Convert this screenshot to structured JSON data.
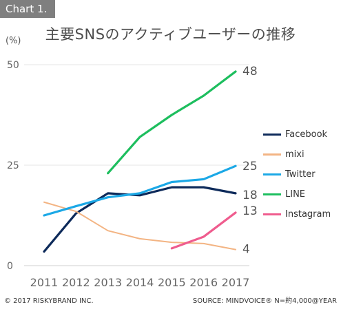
{
  "header": {
    "tag": "Chart 1.",
    "title": "主要SNSのアクティブユーザーの推移"
  },
  "chart_data": {
    "type": "line",
    "ylabel": "(%)",
    "ylim": [
      0,
      50
    ],
    "yticks": [
      0,
      25,
      50
    ],
    "x": [
      "2011",
      "2012",
      "2013",
      "2014",
      "2015",
      "2016",
      "2017"
    ],
    "grid": true,
    "legend_position": "right",
    "series": [
      {
        "name": "Facebook",
        "color": "#0d2a5a",
        "values": [
          3.5,
          13,
          18,
          17.5,
          19.5,
          19.5,
          18
        ],
        "end_label": "18"
      },
      {
        "name": "mixi",
        "color": "#f3b483",
        "values": [
          15.8,
          13.5,
          8.7,
          6.7,
          5.8,
          5.5,
          4
        ],
        "end_label": "4"
      },
      {
        "name": "Twitter",
        "color": "#1ba8e6",
        "values": [
          12.5,
          14.8,
          17,
          18,
          20.8,
          21.5,
          24.8
        ],
        "end_label": "25"
      },
      {
        "name": "LINE",
        "color": "#1dbe5e",
        "values": [
          null,
          null,
          23,
          32,
          37.5,
          42.3,
          48.3
        ],
        "end_label": "48"
      },
      {
        "name": "Instagram",
        "color": "#ef5c8e",
        "values": [
          null,
          null,
          null,
          null,
          4.3,
          7.2,
          13.2
        ],
        "end_label": "13"
      }
    ]
  },
  "footer": {
    "left": "© 2017 RISKYBRAND INC.",
    "right": "SOURCE: MINDVOICE® N=約4,000@YEAR"
  }
}
